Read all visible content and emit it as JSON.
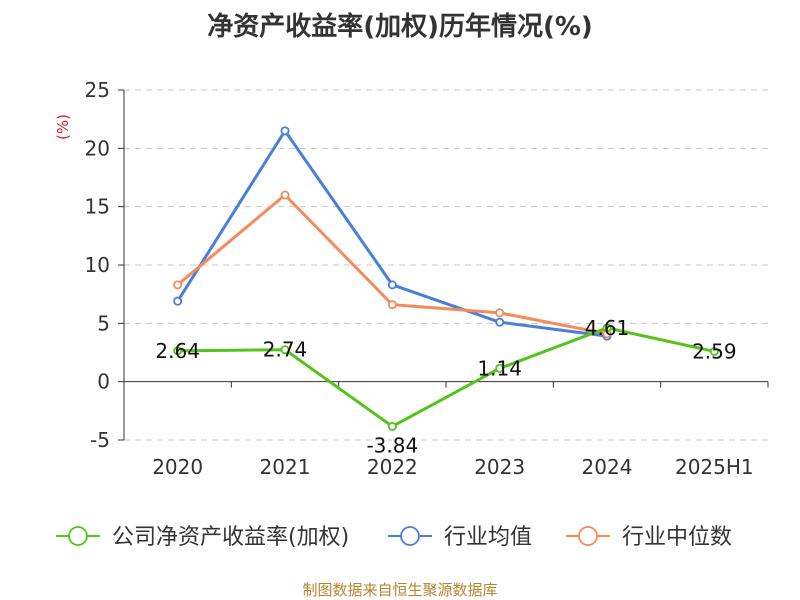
{
  "chart_data": {
    "type": "line",
    "title": "净资产收益率(加权)历年情况(%)",
    "ylabel": "(%)",
    "xlabel": "",
    "categories": [
      "2020",
      "2021",
      "2022",
      "2023",
      "2024",
      "2025H1"
    ],
    "ylim": [
      -5,
      25
    ],
    "yticks": [
      -5,
      0,
      5,
      10,
      15,
      20,
      25
    ],
    "grid": true,
    "legend_position": "bottom",
    "series": [
      {
        "name": "公司净资产收益率(加权)",
        "color": "#52c41a",
        "values": [
          2.64,
          2.74,
          -3.84,
          1.14,
          4.61,
          2.59
        ],
        "labels": [
          "2.64",
          "2.74",
          "-3.84",
          "1.14",
          "4.61",
          "2.59"
        ]
      },
      {
        "name": "行业均值",
        "color": "#4a7fd9",
        "values": [
          6.9,
          21.5,
          8.3,
          5.1,
          3.9,
          null
        ]
      },
      {
        "name": "行业中位数",
        "color": "#f58b5a",
        "values": [
          8.3,
          16.0,
          6.6,
          5.9,
          4.1,
          null
        ]
      }
    ]
  },
  "source": "制图数据来自恒生聚源数据库"
}
